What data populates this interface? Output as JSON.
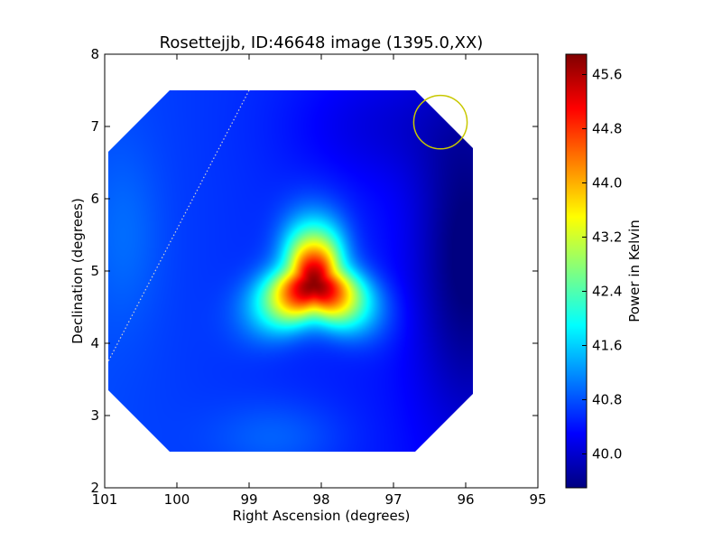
{
  "chart_data": {
    "type": "heatmap",
    "title": "Rosettejjb, ID:46648 image (1395.0,XX)",
    "xlabel": "Right Ascension (degrees)",
    "ylabel": "Declination (degrees)",
    "xlim": [
      101,
      95
    ],
    "ylim": [
      2,
      8
    ],
    "x_ticks": [
      101,
      100,
      99,
      98,
      97,
      96,
      95
    ],
    "x_tick_labels": [
      "101",
      "100",
      "99",
      "98",
      "97",
      "96",
      "95"
    ],
    "y_ticks": [
      2,
      3,
      4,
      5,
      6,
      7,
      8
    ],
    "y_tick_labels": [
      "2",
      "3",
      "4",
      "5",
      "6",
      "7",
      "8"
    ],
    "colorbar": {
      "label": "Power in Kelvin",
      "min": 39.5,
      "max": 45.9,
      "ticks": [
        40.0,
        40.8,
        41.6,
        42.4,
        43.2,
        44.0,
        44.8,
        45.6
      ],
      "tick_labels": [
        "40.0",
        "40.8",
        "41.6",
        "42.4",
        "43.2",
        "44.0",
        "44.8",
        "45.6"
      ],
      "colormap": "jet"
    },
    "image_footprint": [
      [
        100.1,
        7.5
      ],
      [
        96.7,
        7.5
      ],
      [
        95.9,
        6.7
      ],
      [
        95.9,
        3.3
      ],
      [
        96.7,
        2.5
      ],
      [
        100.1,
        2.5
      ],
      [
        100.95,
        3.35
      ],
      [
        100.95,
        6.65
      ]
    ],
    "peak": {
      "ra": 98.1,
      "dec": 4.82,
      "value": 45.8
    },
    "background_value": 40.5,
    "beam_circle": {
      "ra": 96.35,
      "dec": 7.06,
      "radius_deg": 0.37,
      "color": "#c8c800"
    },
    "dotted_line": {
      "from": [
        99.0,
        7.5
      ],
      "to": [
        100.95,
        3.75
      ],
      "color": "#d0d0d0"
    },
    "grid": false
  }
}
